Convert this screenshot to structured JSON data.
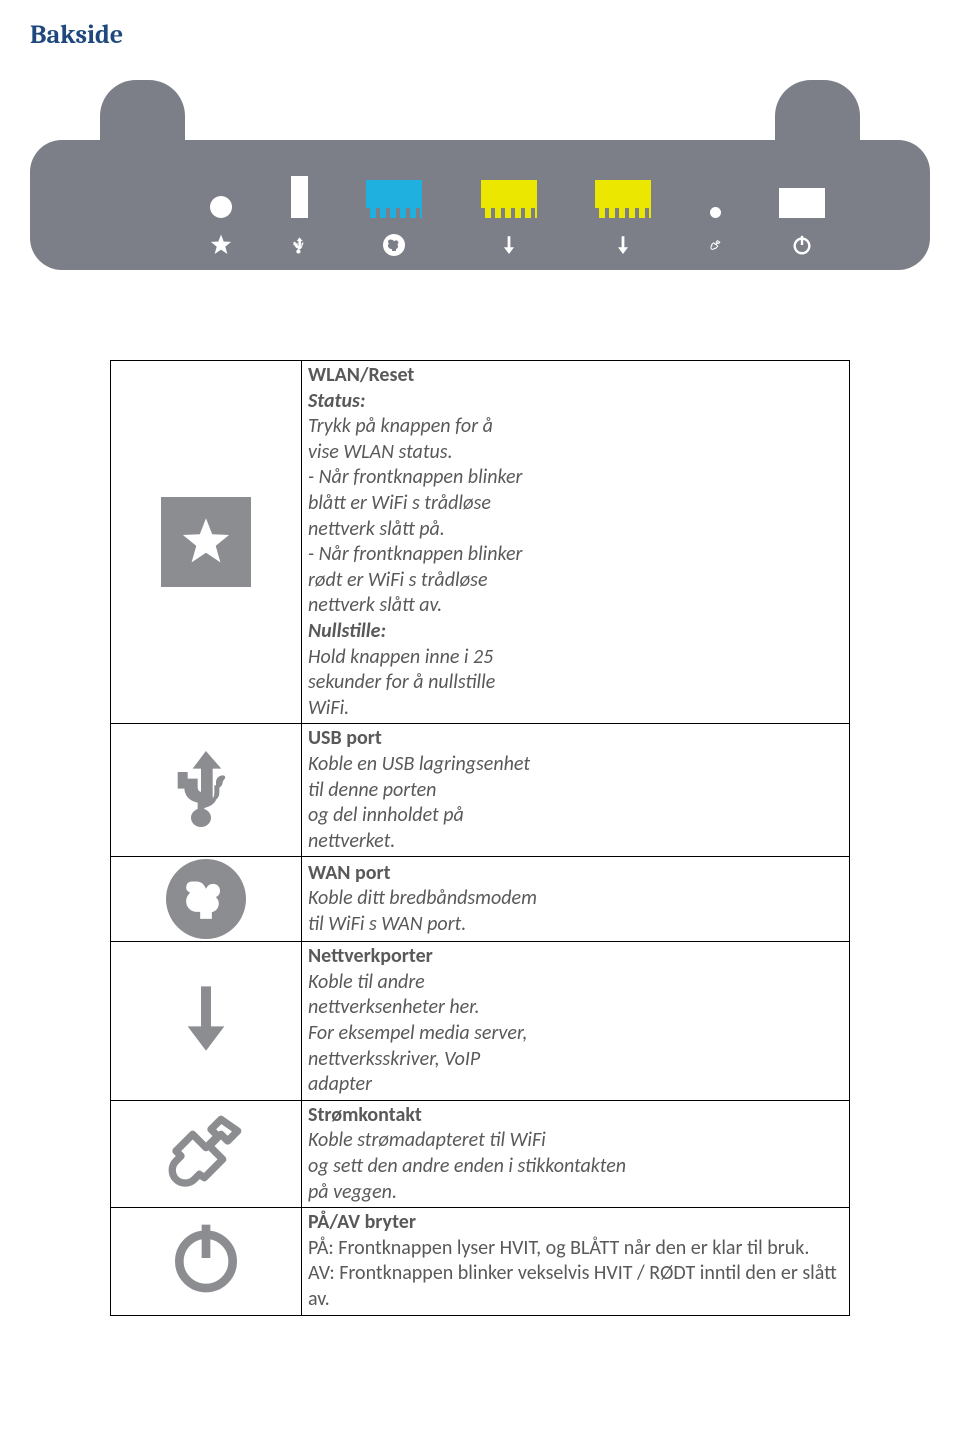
{
  "title": "Bakside",
  "title_color": "#1f497d",
  "title_fontsize": 26,
  "router": {
    "body_color": "#7c7f88",
    "ports": [
      {
        "name": "wlan-reset-btn",
        "shape": "circle",
        "color": "#ffffff"
      },
      {
        "name": "usb-port",
        "shape": "usb",
        "color": "#ffffff"
      },
      {
        "name": "wan-port",
        "shape": "rj45",
        "color": "#1fb0e0"
      },
      {
        "name": "lan1-port",
        "shape": "rj45",
        "color": "#ece700"
      },
      {
        "name": "lan2-port",
        "shape": "rj45",
        "color": "#ece700"
      },
      {
        "name": "power-jack",
        "shape": "dot",
        "color": "#ffffff"
      },
      {
        "name": "power-switch",
        "shape": "switch",
        "color": "#ffffff"
      }
    ],
    "labels": [
      "star",
      "usb",
      "globe",
      "arrow-down",
      "arrow-down",
      "plug",
      "power"
    ],
    "label_color": "#ffffff"
  },
  "rows": [
    {
      "icon": "star-badge",
      "title_bold": "WLAN/Reset",
      "lines": [
        {
          "t": "Status:",
          "i": true,
          "b": true
        },
        {
          "t": "Trykk på knappen for å",
          "i": true
        },
        {
          "t": "vise WLAN status.",
          "i": true
        },
        {
          "t": "- Når frontknappen blinker",
          "i": true
        },
        {
          "t": "blått er WiFi s trådløse",
          "i": true
        },
        {
          "t": "nettverk slått på.",
          "i": true
        },
        {
          "t": "- Når frontknappen blinker",
          "i": true
        },
        {
          "t": "rødt er WiFi s trådløse",
          "i": true
        },
        {
          "t": "nettverk slått av.",
          "i": true
        },
        {
          "t": "Nullstille:",
          "i": true,
          "b": true
        },
        {
          "t": "Hold knappen inne i 25",
          "i": true
        },
        {
          "t": "sekunder for å nullstille",
          "i": true
        },
        {
          "t": "WiFi.",
          "i": true
        }
      ]
    },
    {
      "icon": "usb",
      "title_bold": "USB port",
      "lines": [
        {
          "t": "Koble en USB lagringsenhet",
          "i": true
        },
        {
          "t": "til denne porten",
          "i": true
        },
        {
          "t": "og del innholdet på",
          "i": true
        },
        {
          "t": "nettverket.",
          "i": true
        }
      ]
    },
    {
      "icon": "globe-badge",
      "title_bold": "WAN port",
      "lines": [
        {
          "t": "Koble ditt bredbåndsmodem",
          "i": true
        },
        {
          "t": "til WiFi s WAN port.",
          "i": true
        }
      ]
    },
    {
      "icon": "arrow-down",
      "title_bold": "Nettverkporter",
      "lines": [
        {
          "t": "Koble til andre",
          "i": true
        },
        {
          "t": "nettverksenheter her.",
          "i": true
        },
        {
          "t": "For eksempel media server,",
          "i": true
        },
        {
          "t": "nettverksskriver, VoIP",
          "i": true
        },
        {
          "t": "adapter",
          "i": true
        }
      ]
    },
    {
      "icon": "plug",
      "title_bold": "Strømkontakt",
      "lines": [
        {
          "t": "Koble strømadapteret til WiFi",
          "i": true
        },
        {
          "t": "og sett den andre enden i stikkontakten",
          "i": true
        },
        {
          "t": "på veggen.",
          "i": true
        }
      ]
    },
    {
      "icon": "power",
      "title_bold": "PÅ/AV bryter",
      "lines": [
        {
          "t": "PÅ:  Frontknappen lyser  HVIT, og BLÅTT når den er klar til bruk."
        },
        {
          "t": "AV:  Frontknappen blinker vekselvis HVIT / RØDT inntil den er slått av."
        }
      ]
    }
  ],
  "table_text_color": "#595959",
  "table_fontsize": 20
}
